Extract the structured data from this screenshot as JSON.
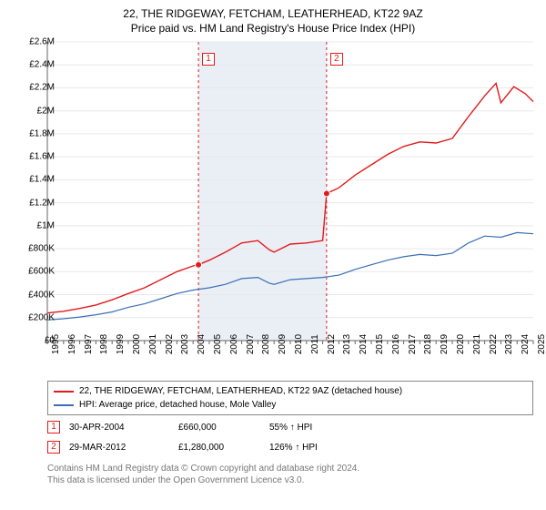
{
  "title": "22, THE RIDGEWAY, FETCHAM, LEATHERHEAD, KT22 9AZ",
  "subtitle": "Price paid vs. HM Land Registry's House Price Index (HPI)",
  "chart": {
    "type": "line",
    "background_color": "#ffffff",
    "axis_color": "#666666",
    "grid_color": "#e8e8e8",
    "x": {
      "min": 1995,
      "max": 2025,
      "ticks": [
        1995,
        1996,
        1997,
        1998,
        1999,
        2000,
        2001,
        2002,
        2003,
        2004,
        2005,
        2006,
        2007,
        2008,
        2009,
        2010,
        2011,
        2012,
        2013,
        2014,
        2015,
        2016,
        2017,
        2018,
        2019,
        2020,
        2021,
        2022,
        2023,
        2024,
        2025
      ],
      "tick_fontsize": 10,
      "tick_rotation": -90
    },
    "y": {
      "min": 0,
      "max": 2600000,
      "ticks": [
        0,
        200000,
        400000,
        600000,
        800000,
        1000000,
        1200000,
        1400000,
        1600000,
        1800000,
        2000000,
        2200000,
        2400000,
        2600000
      ],
      "tick_labels": [
        "£0",
        "£200K",
        "£400K",
        "£600K",
        "£800K",
        "£1M",
        "£1.2M",
        "£1.4M",
        "£1.6M",
        "£1.8M",
        "£2M",
        "£2.2M",
        "£2.4M",
        "£2.6M"
      ],
      "tick_fontsize": 10
    },
    "band": {
      "from": 2004.33,
      "to": 2012.24,
      "fill": "#eaeff6"
    },
    "series": [
      {
        "name": "property",
        "label": "22, THE RIDGEWAY, FETCHAM, LEATHERHEAD, KT22 9AZ (detached house)",
        "color": "#e11b1b",
        "line_width": 1.4,
        "points": [
          [
            1995,
            240000
          ],
          [
            1996,
            255000
          ],
          [
            1997,
            280000
          ],
          [
            1998,
            310000
          ],
          [
            1999,
            355000
          ],
          [
            2000,
            410000
          ],
          [
            2001,
            460000
          ],
          [
            2002,
            530000
          ],
          [
            2003,
            600000
          ],
          [
            2004,
            650000
          ],
          [
            2004.33,
            660000
          ],
          [
            2005,
            700000
          ],
          [
            2006,
            770000
          ],
          [
            2007,
            850000
          ],
          [
            2008,
            870000
          ],
          [
            2008.7,
            790000
          ],
          [
            2009,
            770000
          ],
          [
            2010,
            840000
          ],
          [
            2011,
            850000
          ],
          [
            2012,
            870000
          ],
          [
            2012.24,
            1280000
          ],
          [
            2013,
            1330000
          ],
          [
            2014,
            1440000
          ],
          [
            2015,
            1530000
          ],
          [
            2016,
            1620000
          ],
          [
            2017,
            1690000
          ],
          [
            2018,
            1730000
          ],
          [
            2019,
            1720000
          ],
          [
            2020,
            1760000
          ],
          [
            2021,
            1950000
          ],
          [
            2022,
            2130000
          ],
          [
            2022.7,
            2240000
          ],
          [
            2023,
            2070000
          ],
          [
            2023.8,
            2210000
          ],
          [
            2024.5,
            2150000
          ],
          [
            2025,
            2080000
          ]
        ]
      },
      {
        "name": "hpi",
        "label": "HPI: Average price, detached house, Mole Valley",
        "color": "#3b6fb6",
        "line_width": 1.2,
        "points": [
          [
            1995,
            180000
          ],
          [
            1996,
            190000
          ],
          [
            1997,
            205000
          ],
          [
            1998,
            225000
          ],
          [
            1999,
            250000
          ],
          [
            2000,
            290000
          ],
          [
            2001,
            320000
          ],
          [
            2002,
            365000
          ],
          [
            2003,
            410000
          ],
          [
            2004,
            440000
          ],
          [
            2005,
            460000
          ],
          [
            2006,
            490000
          ],
          [
            2007,
            540000
          ],
          [
            2008,
            550000
          ],
          [
            2008.7,
            500000
          ],
          [
            2009,
            490000
          ],
          [
            2010,
            530000
          ],
          [
            2011,
            540000
          ],
          [
            2012,
            550000
          ],
          [
            2013,
            570000
          ],
          [
            2014,
            620000
          ],
          [
            2015,
            660000
          ],
          [
            2016,
            700000
          ],
          [
            2017,
            730000
          ],
          [
            2018,
            750000
          ],
          [
            2019,
            740000
          ],
          [
            2020,
            760000
          ],
          [
            2021,
            850000
          ],
          [
            2022,
            910000
          ],
          [
            2023,
            900000
          ],
          [
            2024,
            940000
          ],
          [
            2025,
            930000
          ]
        ]
      }
    ],
    "event_lines": [
      {
        "x": 2004.33,
        "color": "#e11b1b",
        "dash": "3,3"
      },
      {
        "x": 2012.24,
        "color": "#e11b1b",
        "dash": "3,3"
      }
    ],
    "event_markers": [
      {
        "id": "1",
        "x": 2004.33,
        "y_top_offset": 12,
        "color": "#e11b1b"
      },
      {
        "id": "2",
        "x": 2012.24,
        "y_top_offset": 12,
        "color": "#e11b1b"
      }
    ],
    "sale_points": [
      {
        "x": 2004.33,
        "y": 660000,
        "color": "#e11b1b"
      },
      {
        "x": 2012.24,
        "y": 1280000,
        "color": "#e11b1b"
      }
    ]
  },
  "legend": {
    "border_color": "#888888",
    "items": [
      {
        "color": "#e11b1b",
        "label": "22, THE RIDGEWAY, FETCHAM, LEATHERHEAD, KT22 9AZ (detached house)"
      },
      {
        "color": "#3b6fb6",
        "label": "HPI: Average price, detached house, Mole Valley"
      }
    ]
  },
  "events_table": [
    {
      "id": "1",
      "color": "#e11b1b",
      "date": "30-APR-2004",
      "price": "£660,000",
      "delta": "55% ↑ HPI"
    },
    {
      "id": "2",
      "color": "#e11b1b",
      "date": "29-MAR-2012",
      "price": "£1,280,000",
      "delta": "126% ↑ HPI"
    }
  ],
  "footer": {
    "line1": "Contains HM Land Registry data © Crown copyright and database right 2024.",
    "line2": "This data is licensed under the Open Government Licence v3.0.",
    "color": "#777777"
  }
}
